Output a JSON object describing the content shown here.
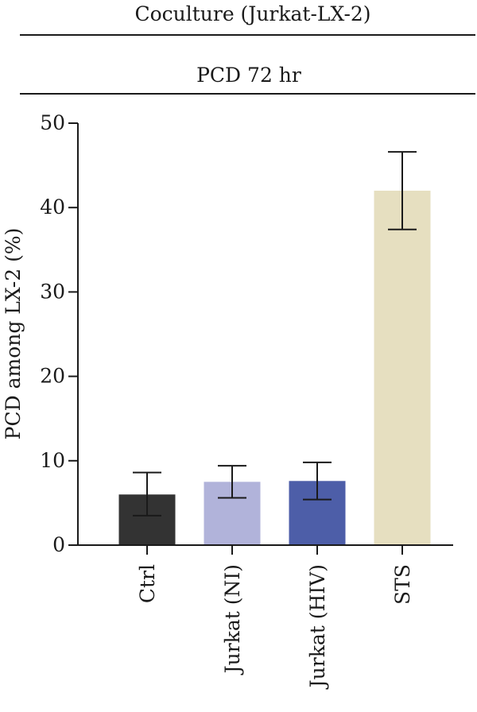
{
  "header": {
    "group_title": "Coculture (Jurkat-LX-2)",
    "subtitle": "PCD 72 hr"
  },
  "chart_data": {
    "type": "bar",
    "title": "",
    "xlabel": "",
    "ylabel": "PCD among LX-2 (%)",
    "ylim": [
      0,
      50
    ],
    "yticks": [
      0,
      10,
      20,
      30,
      40,
      50
    ],
    "categories": [
      "Ctrl",
      "Jurkat (NI)",
      "Jurkat (HIV)",
      "STS"
    ],
    "values": [
      6.0,
      7.5,
      7.6,
      42.0
    ],
    "error_low": [
      3.5,
      5.6,
      5.4,
      37.4
    ],
    "error_high": [
      8.6,
      9.4,
      9.8,
      46.6
    ],
    "colors": [
      "#333333",
      "#b1b3da",
      "#4d5ea8",
      "#e6dfc0"
    ],
    "grid": false
  }
}
